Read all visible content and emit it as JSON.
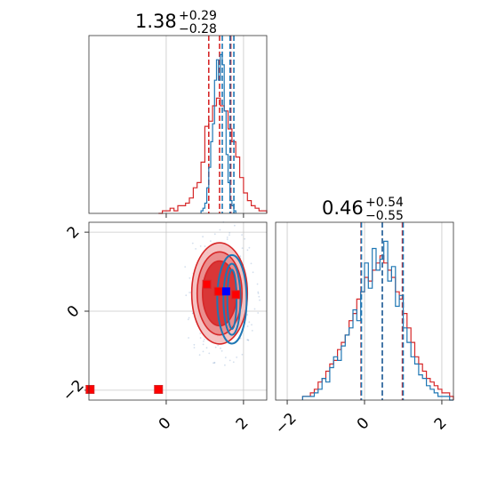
{
  "chart_data": [
    {
      "type": "histogram",
      "panel": "top-left",
      "title": {
        "median": "1.38",
        "plus": "+0.29",
        "minus": "−0.28"
      },
      "xlim": [
        -2.0,
        2.6
      ],
      "x_ticks": [
        0,
        2
      ],
      "grid": true,
      "series": [
        {
          "name": "",
          "color": "#d62728",
          "bin_start": -0.2,
          "bin_width": 0.1,
          "counts": [
            0,
            1,
            1,
            2,
            1,
            3,
            3,
            4,
            6,
            10,
            12,
            20,
            34,
            36,
            42,
            45,
            42,
            40,
            33,
            28,
            22,
            14,
            8,
            5,
            3,
            2,
            1,
            1
          ],
          "quantiles": [
            1.1,
            1.38,
            1.67
          ]
        },
        {
          "name": "",
          "color": "#1f77b4",
          "bin_start": 0.9,
          "bin_width": 0.05,
          "counts": [
            1,
            2,
            4,
            10,
            18,
            28,
            35,
            52,
            60,
            52,
            62,
            58,
            40,
            23,
            12,
            5,
            3,
            1
          ],
          "quantiles": [
            1.45,
            1.65,
            1.75
          ]
        }
      ]
    },
    {
      "type": "contour",
      "panel": "bottom-left",
      "xlim": [
        -2.0,
        2.6
      ],
      "ylim": [
        -2.25,
        2.25
      ],
      "x_ticks": [
        0,
        2
      ],
      "y_ticks": [
        -2,
        0,
        2
      ],
      "grid": true,
      "red_contours": {
        "center": [
          1.38,
          0.45
        ],
        "radii": [
          [
            0.44,
            0.82
          ],
          [
            0.58,
            1.05
          ],
          [
            0.72,
            1.28
          ]
        ]
      },
      "blue_contours": {
        "center": [
          1.7,
          0.3
        ],
        "radii": [
          [
            0.12,
            0.75
          ],
          [
            0.22,
            0.9
          ],
          [
            0.38,
            1.12
          ]
        ]
      },
      "red_markers": [
        [
          1.05,
          0.68
        ],
        [
          1.35,
          0.5
        ],
        [
          1.8,
          0.42
        ],
        [
          -1.97,
          -1.98
        ],
        [
          -0.2,
          -1.98
        ]
      ],
      "blue_markers": [
        [
          1.55,
          0.5
        ]
      ]
    },
    {
      "type": "histogram",
      "panel": "bottom-right",
      "title": {
        "median": "0.46",
        "plus": "+0.54",
        "minus": "−0.55"
      },
      "xlim": [
        -2.3,
        2.3
      ],
      "x_ticks": [
        -2,
        0,
        2
      ],
      "grid": true,
      "series": [
        {
          "name": "",
          "color": "#d62728",
          "bin_start": -1.6,
          "bin_width": 0.1,
          "counts": [
            1,
            1,
            2,
            3,
            5,
            6,
            8,
            10,
            11,
            14,
            16,
            18,
            22,
            24,
            28,
            30,
            34,
            33,
            36,
            38,
            40,
            38,
            36,
            34,
            30,
            28,
            24,
            20,
            16,
            12,
            10,
            8,
            6,
            5,
            4,
            3,
            2,
            2,
            1
          ],
          "quantiles": [
            -0.09,
            0.46,
            0.98
          ]
        },
        {
          "name": "",
          "color": "#1f77b4",
          "bin_start": -1.6,
          "bin_width": 0.1,
          "counts": [
            1,
            1,
            1,
            2,
            3,
            6,
            5,
            9,
            12,
            11,
            15,
            18,
            20,
            25,
            22,
            30,
            38,
            31,
            42,
            36,
            39,
            44,
            33,
            37,
            26,
            29,
            20,
            16,
            12,
            10,
            7,
            6,
            4,
            3,
            2,
            1,
            1,
            1,
            0
          ],
          "quantiles": [
            -0.08,
            0.46,
            1.0
          ]
        }
      ]
    }
  ]
}
